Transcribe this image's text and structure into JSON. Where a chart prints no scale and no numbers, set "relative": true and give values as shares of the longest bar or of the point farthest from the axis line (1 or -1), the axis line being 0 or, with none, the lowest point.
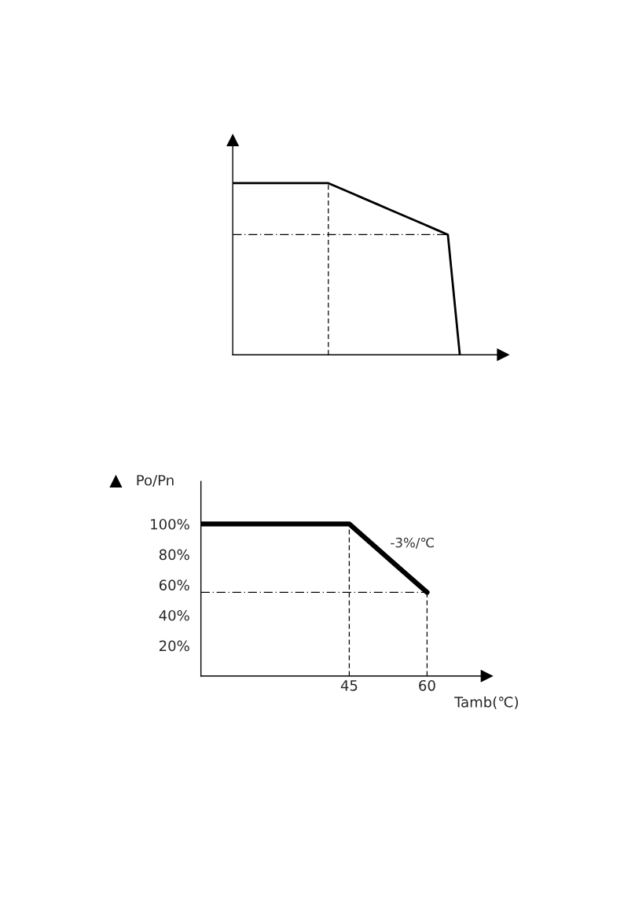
{
  "chart_data": [
    {
      "type": "line",
      "relative": true,
      "grid": false,
      "legend": false,
      "categories": [
        null,
        null,
        null,
        null,
        null,
        null,
        null,
        null,
        null,
        null,
        null,
        null,
        null,
        null,
        null,
        null,
        null,
        null,
        null,
        null
      ],
      "series": [
        {
          "color": "#000000",
          "values": [
            1,
            1,
            1,
            1,
            1,
            1,
            1,
            1,
            1,
            0.97,
            0.94,
            0.91,
            0.88,
            0.85,
            0.82,
            0.79,
            0.76,
            0.73,
            0.7,
            0
          ]
        }
      ],
      "ref_lines": [
        {
          "axis": "y",
          "value": 0.7,
          "line_style": "dashdot",
          "color": "#000000"
        }
      ]
    },
    {
      "type": "line",
      "xlabel": "Tamb(℃)",
      "ylabel": "Po/Pn",
      "grid": false,
      "legend": false,
      "xlim": [
        16.4,
        71.5
      ],
      "ylim": [
        0,
        128
      ],
      "xticks": [
        45,
        60
      ],
      "yticks": [
        {
          "value": 20,
          "label": "20%"
        },
        {
          "value": 40,
          "label": "40%"
        },
        {
          "value": 60,
          "label": "60%"
        },
        {
          "value": 80,
          "label": "80%"
        },
        {
          "value": 100,
          "label": "100%"
        }
      ],
      "series": [
        {
          "color": "#000000",
          "x": [
            16.4,
            45,
            60
          ],
          "values": [
            100,
            100,
            55
          ]
        }
      ],
      "ref_lines": [
        {
          "axis": "x",
          "value": 45,
          "line_style": "dashed",
          "color": "#000000"
        },
        {
          "axis": "x",
          "value": 60,
          "line_style": "dashed",
          "color": "#000000"
        },
        {
          "axis": "y",
          "value": 55,
          "line_style": "dashdot",
          "color": "#000000"
        }
      ],
      "annotations": [
        "-3%/℃"
      ]
    }
  ]
}
